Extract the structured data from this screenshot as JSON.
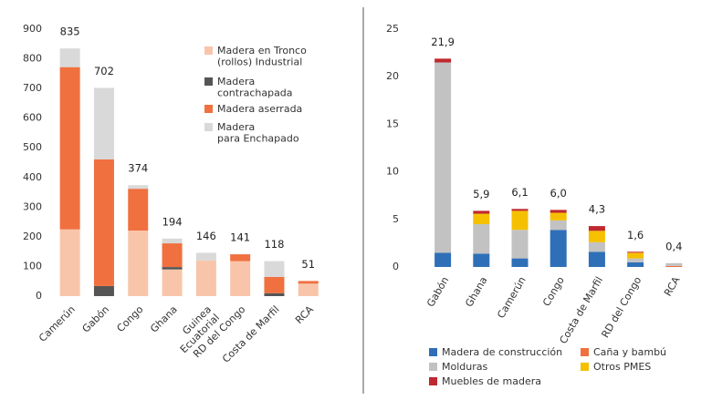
{
  "chart_data": [
    {
      "type": "stacked_bar",
      "categories": [
        "Camerún",
        "Gabón",
        "Congo",
        "Ghana",
        "Guinea\nEcuatorial",
        "RD del Congo",
        "Costa de Marfil",
        "RCA"
      ],
      "series": [
        {
          "name": "Madera en Tronco\n(rollos) Industrial",
          "color": "#f8c5aa",
          "values": [
            225,
            0,
            221,
            90,
            120,
            118,
            0,
            42
          ]
        },
        {
          "name": "Madera\ncontrachapada",
          "color": "#555555",
          "values": [
            0,
            34,
            0,
            8,
            0,
            0,
            10,
            0
          ]
        },
        {
          "name": "Madera aserrada",
          "color": "#f07040",
          "values": [
            547,
            427,
            141,
            80,
            0,
            23,
            55,
            9
          ]
        },
        {
          "name": "Madera\npara Enchapado",
          "color": "#d9d9d9",
          "values": [
            63,
            241,
            12,
            16,
            26,
            0,
            53,
            0
          ]
        }
      ],
      "totals": [
        835,
        702,
        374,
        194,
        146,
        141,
        118,
        51
      ],
      "ylim": [
        0,
        900
      ],
      "yticks": [
        0,
        100,
        200,
        300,
        400,
        500,
        600,
        700,
        800,
        900
      ]
    },
    {
      "type": "stacked_bar",
      "categories": [
        "Gabón",
        "Ghana",
        "Camerún",
        "Congo",
        "Costa de Marfil",
        "RD del Congo",
        "RCA"
      ],
      "series": [
        {
          "name": "Madera de construcción",
          "color": "#2f6fb8",
          "values": [
            1.5,
            1.4,
            0.9,
            3.9,
            1.6,
            0.5,
            0
          ]
        },
        {
          "name": "Caña y bambú",
          "color": "#f07040",
          "values": [
            0,
            0,
            0,
            0,
            0,
            0,
            0.1
          ]
        },
        {
          "name": "Molduras",
          "color": "#c2c2c2",
          "values": [
            20.0,
            3.1,
            3.0,
            1.0,
            1.0,
            0.4,
            0.3
          ]
        },
        {
          "name": "Otros PMES",
          "color": "#f5c000",
          "values": [
            0,
            1.1,
            2.0,
            0.8,
            1.2,
            0.6,
            0
          ]
        },
        {
          "name": "Muebles de madera",
          "color": "#c0282f",
          "values": [
            0.4,
            0.3,
            0.2,
            0.3,
            0.5,
            0.1,
            0
          ]
        }
      ],
      "totals": [
        21.9,
        5.9,
        6.1,
        6.0,
        4.3,
        1.6,
        0.4
      ],
      "total_labels": [
        "21,9",
        "5,9",
        "6,1",
        "6,0",
        "4,3",
        "1,6",
        "0,4"
      ],
      "ylim": [
        0,
        25
      ],
      "yticks": [
        0,
        5,
        10,
        15,
        20,
        25
      ]
    }
  ]
}
